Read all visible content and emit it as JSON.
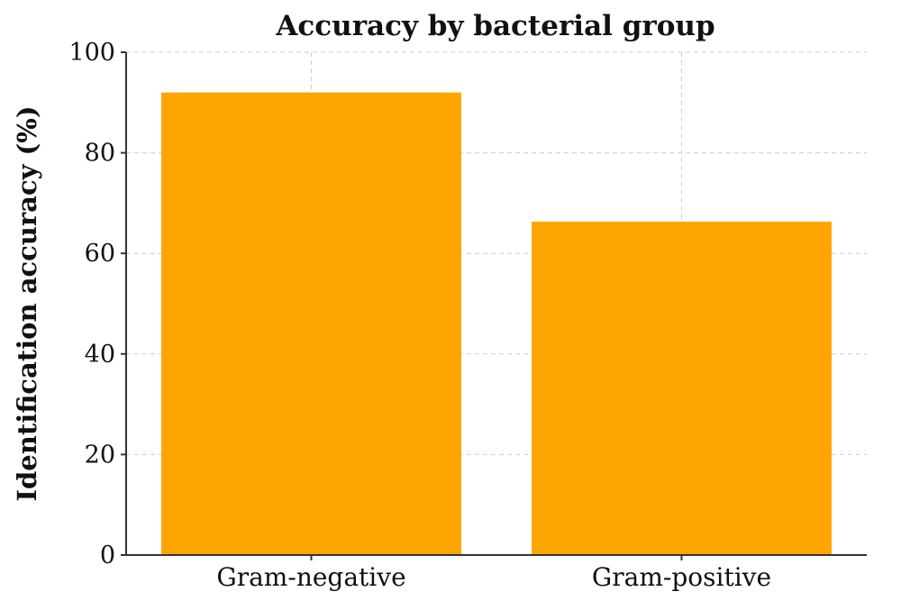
{
  "chart_data": {
    "type": "bar",
    "title": "Accuracy by bacterial group",
    "xlabel": "",
    "ylabel": "Identification accuracy (%)",
    "categories": [
      "Gram-negative",
      "Gram-positive"
    ],
    "values": [
      92,
      66.3
    ],
    "ylim": [
      0,
      100
    ],
    "yticks": [
      0,
      20,
      40,
      60,
      80,
      100
    ],
    "grid": true,
    "bar_color": "#FFA500"
  }
}
